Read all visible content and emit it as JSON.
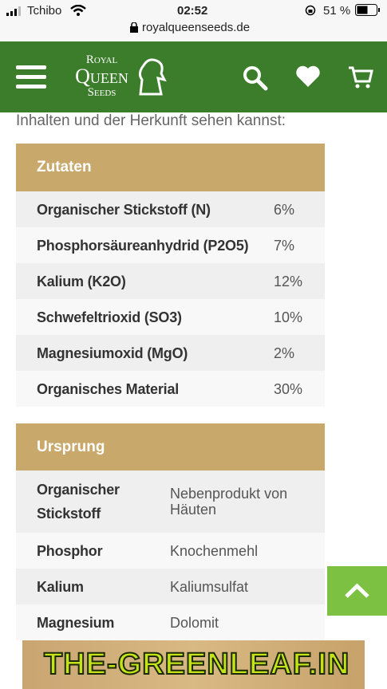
{
  "status_bar": {
    "carrier": "Tchibo",
    "time": "02:52",
    "battery": "51 %",
    "url": "royalqueenseeds.de"
  },
  "header": {
    "logo": [
      "Royal",
      "Queen",
      "Seeds"
    ]
  },
  "intro": "Inhalten und der Herkunft sehen kannst:",
  "tables": [
    {
      "title": "Zutaten",
      "rows": [
        [
          "Organischer Stickstoff (N)",
          "6%"
        ],
        [
          "Phosphorsäureanhydrid (P2O5)",
          "7%"
        ],
        [
          "Kalium (K2O)",
          "12%"
        ],
        [
          "Schwefeltrioxid (SO3)",
          "10%"
        ],
        [
          "Magnesiumoxid (MgO)",
          "2%"
        ],
        [
          "Organisches Material",
          "30%"
        ]
      ]
    },
    {
      "title": "Ursprung",
      "rows": [
        [
          "Organischer Stickstoff",
          "Nebenprodukt von Häuten"
        ],
        [
          "Phosphor",
          "Knochenmehl"
        ],
        [
          "Kalium",
          "Kaliumsulfat"
        ],
        [
          "Magnesium",
          "Dolomit"
        ]
      ]
    }
  ],
  "watermark": "THE-GREENLEAF.IN"
}
